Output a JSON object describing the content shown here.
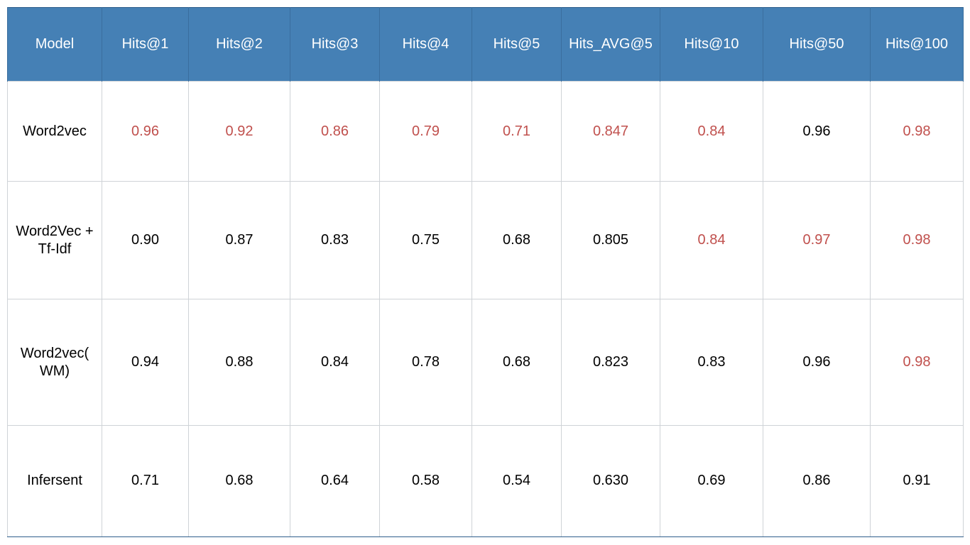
{
  "colors": {
    "header_background": "#4580b5",
    "header_text": "#ffffff",
    "highlight_value": "#c0504d",
    "normal_value": "#000000"
  },
  "chart_data": {
    "type": "table",
    "columns": [
      "Model",
      "Hits@1",
      "Hits@2",
      "Hits@3",
      "Hits@4",
      "Hits@5",
      "Hits_AVG@5",
      "Hits@10",
      "Hits@50",
      "Hits@100"
    ],
    "rows": [
      {
        "model": "Word2vec",
        "cells": [
          {
            "value": "0.96",
            "best": true
          },
          {
            "value": "0.92",
            "best": true
          },
          {
            "value": "0.86",
            "best": true
          },
          {
            "value": "0.79",
            "best": true
          },
          {
            "value": "0.71",
            "best": true
          },
          {
            "value": "0.847",
            "best": true
          },
          {
            "value": "0.84",
            "best": true
          },
          {
            "value": "0.96",
            "best": false
          },
          {
            "value": "0.98",
            "best": true
          }
        ]
      },
      {
        "model": "Word2Vec + Tf-Idf",
        "cells": [
          {
            "value": "0.90",
            "best": false
          },
          {
            "value": "0.87",
            "best": false
          },
          {
            "value": "0.83",
            "best": false
          },
          {
            "value": "0.75",
            "best": false
          },
          {
            "value": "0.68",
            "best": false
          },
          {
            "value": "0.805",
            "best": false
          },
          {
            "value": "0.84",
            "best": true
          },
          {
            "value": "0.97",
            "best": true
          },
          {
            "value": "0.98",
            "best": true
          }
        ]
      },
      {
        "model": "Word2vec( WM)",
        "cells": [
          {
            "value": "0.94",
            "best": false
          },
          {
            "value": "0.88",
            "best": false
          },
          {
            "value": "0.84",
            "best": false
          },
          {
            "value": "0.78",
            "best": false
          },
          {
            "value": "0.68",
            "best": false
          },
          {
            "value": "0.823",
            "best": false
          },
          {
            "value": "0.83",
            "best": false
          },
          {
            "value": "0.96",
            "best": false
          },
          {
            "value": "0.98",
            "best": true
          }
        ]
      },
      {
        "model": "Infersent",
        "cells": [
          {
            "value": "0.71",
            "best": false
          },
          {
            "value": "0.68",
            "best": false
          },
          {
            "value": "0.64",
            "best": false
          },
          {
            "value": "0.58",
            "best": false
          },
          {
            "value": "0.54",
            "best": false
          },
          {
            "value": "0.630",
            "best": false
          },
          {
            "value": "0.69",
            "best": false
          },
          {
            "value": "0.86",
            "best": false
          },
          {
            "value": "0.91",
            "best": false
          }
        ]
      }
    ]
  }
}
